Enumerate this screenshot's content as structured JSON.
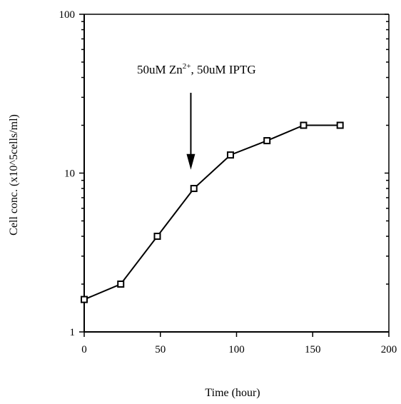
{
  "chart_data": {
    "type": "line",
    "title": "",
    "xlabel": "Time (hour)",
    "ylabel": "Cell conc. (x10^5cells/ml)",
    "xlim": [
      0,
      200
    ],
    "ylim": [
      1,
      100
    ],
    "yscale": "log",
    "grid": false,
    "xticks": [
      "0",
      "50",
      "100",
      "150",
      "200"
    ],
    "yticks": [
      "1",
      "10",
      "100"
    ],
    "series": [
      {
        "x": [
          0,
          24,
          48,
          72,
          96,
          120,
          144,
          168
        ],
        "y": [
          1.6,
          2.0,
          4.0,
          8.0,
          13.0,
          16.0,
          20.0,
          20.0
        ]
      }
    ],
    "annotations": [
      {
        "text_main": "50uM Zn",
        "text_sup": "2+",
        "text_tail": ", 50uM IPTG",
        "arrow_x": 70,
        "arrow_y": 10.5
      }
    ]
  }
}
